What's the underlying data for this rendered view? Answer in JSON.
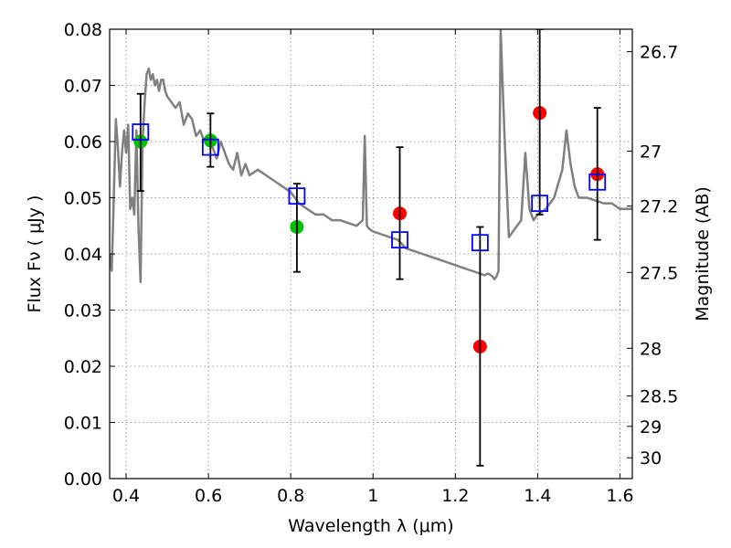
{
  "chart_data": {
    "type": "scatter",
    "title": "",
    "xlabel": "Wavelength  λ (μm)",
    "ylabel": "Flux  Fν  ( μJy )",
    "y2label": "Magnitude (AB)",
    "xlim": [
      0.36,
      1.63
    ],
    "ylim": [
      0.0,
      0.08
    ],
    "grid": true,
    "x_ticks": [
      0.4,
      0.6,
      0.8,
      1.0,
      1.2,
      1.4,
      1.6
    ],
    "x_tick_labels": [
      "0.4",
      "0.6",
      "0.8",
      "1",
      "1.2",
      "1.4",
      "1.6"
    ],
    "y_ticks": [
      0.0,
      0.01,
      0.02,
      0.03,
      0.04,
      0.05,
      0.06,
      0.07,
      0.08
    ],
    "y_tick_labels": [
      "0.00",
      "0.01",
      "0.02",
      "0.03",
      "0.04",
      "0.05",
      "0.06",
      "0.07",
      "0.08"
    ],
    "y2_ticks": [
      {
        "label": "26.7",
        "flux": 0.076
      },
      {
        "label": "27",
        "flux": 0.0583
      },
      {
        "label": "27.2",
        "flux": 0.0485
      },
      {
        "label": "27.5",
        "flux": 0.0367
      },
      {
        "label": "28",
        "flux": 0.0232
      },
      {
        "label": "28.5",
        "flux": 0.0147
      },
      {
        "label": "29",
        "flux": 0.0093
      },
      {
        "label": "30",
        "flux": 0.0037
      }
    ],
    "series": [
      {
        "style": "model-spectrum",
        "color": "#808080",
        "x": [
          0.36,
          0.365,
          0.37,
          0.375,
          0.38,
          0.385,
          0.39,
          0.395,
          0.4,
          0.405,
          0.41,
          0.415,
          0.42,
          0.425,
          0.43,
          0.435,
          0.44,
          0.445,
          0.45,
          0.455,
          0.46,
          0.465,
          0.47,
          0.475,
          0.48,
          0.485,
          0.49,
          0.495,
          0.5,
          0.51,
          0.52,
          0.53,
          0.54,
          0.55,
          0.56,
          0.57,
          0.58,
          0.59,
          0.6,
          0.61,
          0.62,
          0.63,
          0.64,
          0.65,
          0.66,
          0.67,
          0.68,
          0.69,
          0.7,
          0.72,
          0.74,
          0.76,
          0.78,
          0.8,
          0.82,
          0.84,
          0.86,
          0.88,
          0.9,
          0.92,
          0.94,
          0.96,
          0.975,
          0.98,
          0.985,
          0.99,
          1.0,
          1.02,
          1.04,
          1.06,
          1.08,
          1.1,
          1.12,
          1.14,
          1.16,
          1.18,
          1.2,
          1.22,
          1.24,
          1.26,
          1.27,
          1.28,
          1.29,
          1.295,
          1.3,
          1.305,
          1.31,
          1.315,
          1.32,
          1.33,
          1.34,
          1.35,
          1.36,
          1.37,
          1.38,
          1.39,
          1.4,
          1.42,
          1.44,
          1.46,
          1.47,
          1.48,
          1.49,
          1.5,
          1.52,
          1.54,
          1.56,
          1.58,
          1.6,
          1.63
        ],
        "y": [
          0.04,
          0.037,
          0.05,
          0.064,
          0.059,
          0.052,
          0.058,
          0.062,
          0.058,
          0.063,
          0.048,
          0.05,
          0.047,
          0.062,
          0.045,
          0.035,
          0.06,
          0.067,
          0.072,
          0.073,
          0.071,
          0.072,
          0.07,
          0.071,
          0.069,
          0.071,
          0.071,
          0.069,
          0.068,
          0.067,
          0.066,
          0.067,
          0.063,
          0.065,
          0.064,
          0.061,
          0.062,
          0.06,
          0.06,
          0.059,
          0.057,
          0.06,
          0.058,
          0.056,
          0.055,
          0.058,
          0.054,
          0.056,
          0.054,
          0.055,
          0.054,
          0.053,
          0.052,
          0.051,
          0.049,
          0.048,
          0.047,
          0.047,
          0.046,
          0.046,
          0.0455,
          0.045,
          0.046,
          0.061,
          0.045,
          0.0445,
          0.044,
          0.0435,
          0.043,
          0.0425,
          0.041,
          0.0405,
          0.04,
          0.0395,
          0.039,
          0.0385,
          0.038,
          0.0375,
          0.037,
          0.0365,
          0.0362,
          0.0365,
          0.036,
          0.0355,
          0.036,
          0.037,
          0.08,
          0.07,
          0.06,
          0.043,
          0.044,
          0.045,
          0.046,
          0.058,
          0.048,
          0.046,
          0.047,
          0.048,
          0.05,
          0.055,
          0.062,
          0.056,
          0.052,
          0.05,
          0.05,
          0.0495,
          0.049,
          0.049,
          0.048,
          0.048
        ]
      },
      {
        "style": "green-dot",
        "color": "#00c000",
        "x": [
          0.435,
          0.605,
          0.815
        ],
        "y": [
          0.06,
          0.0602,
          0.0448
        ]
      },
      {
        "style": "red-dot",
        "color": "#ff0000",
        "x": [
          1.065,
          1.26,
          1.405,
          1.545
        ],
        "y": [
          0.0472,
          0.0235,
          0.0651,
          0.0542
        ]
      },
      {
        "style": "blue-square-with-errorbar",
        "color": "#0000ff",
        "errorbar_color": "#000000",
        "x": [
          0.435,
          0.605,
          0.815,
          1.065,
          1.26,
          1.405,
          1.545
        ],
        "y": [
          0.0617,
          0.059,
          0.0503,
          0.0425,
          0.042,
          0.049,
          0.0528
        ],
        "ylow": [
          0.0512,
          0.0555,
          0.0368,
          0.0355,
          0.0023,
          0.047,
          0.0425
        ],
        "yhigh": [
          0.0685,
          0.065,
          0.0525,
          0.059,
          0.0448,
          0.08,
          0.066
        ]
      }
    ]
  }
}
